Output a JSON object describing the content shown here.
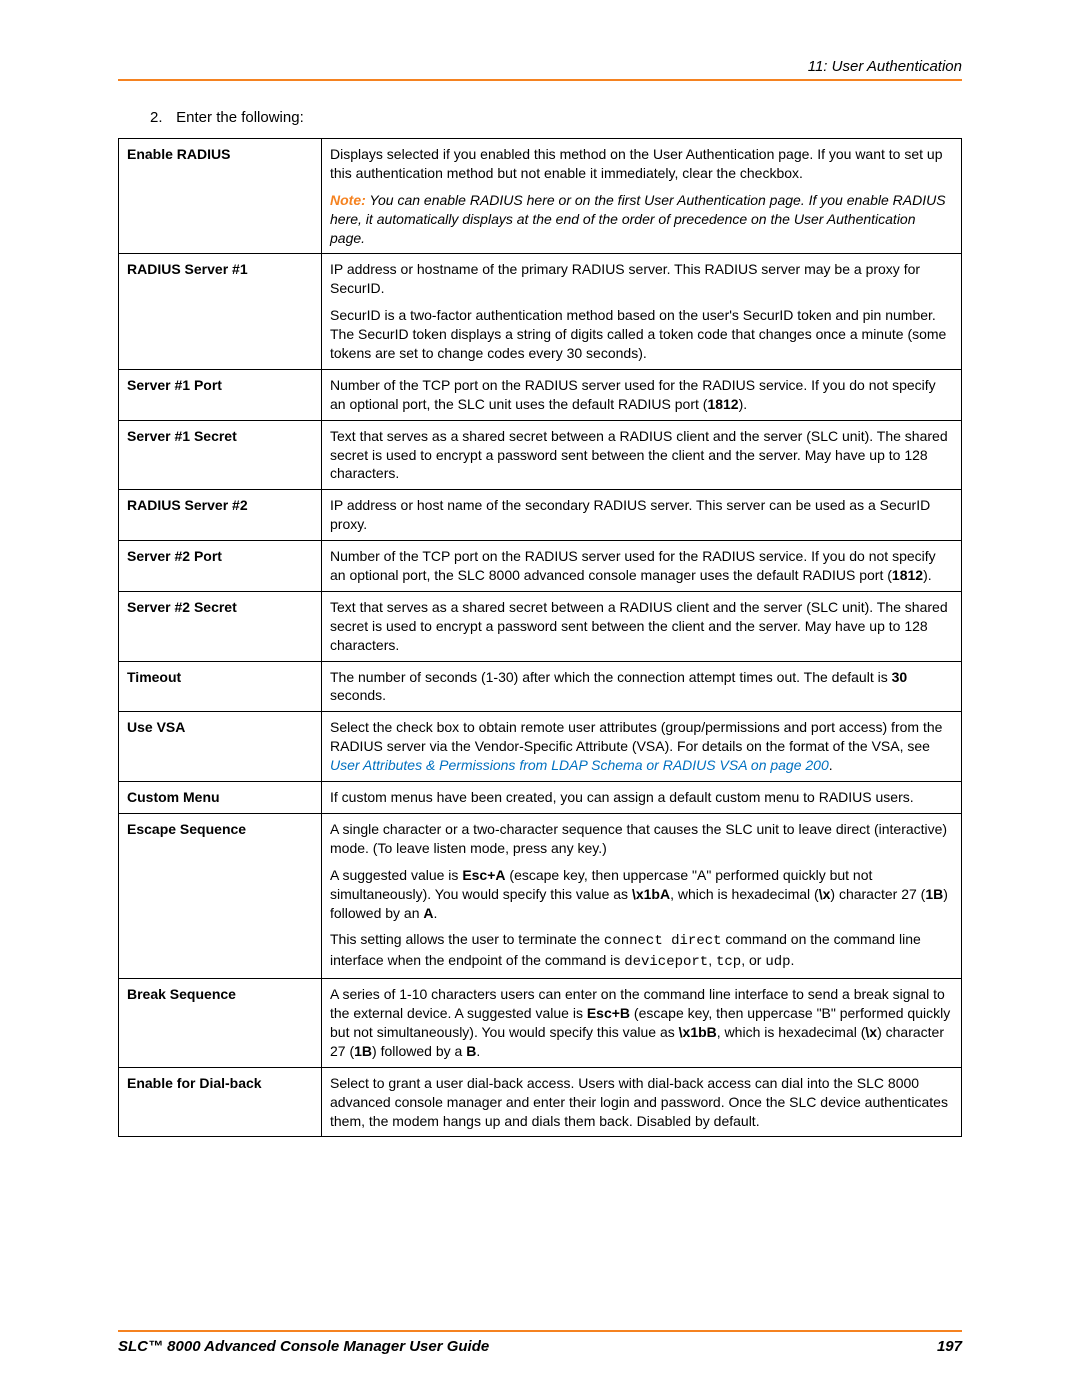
{
  "colors": {
    "accent": "#f58220",
    "link": "#0070c0",
    "text": "#000000",
    "background": "#ffffff",
    "border": "#000000"
  },
  "typography": {
    "body_font": "Arial",
    "body_size_pt": 11,
    "mono_font": "Courier New"
  },
  "header": {
    "chapter": "11: User Authentication"
  },
  "step": {
    "number": "2.",
    "text": "Enter the following:"
  },
  "table": {
    "rows": [
      {
        "label": "Enable RADIUS",
        "paras": [
          {
            "type": "plain",
            "text": "Displays selected if you enabled this method on the User Authentication page. If you want to set up this authentication method but not enable it immediately, clear the checkbox."
          },
          {
            "type": "note",
            "note_label": "Note:",
            "text": "You can enable RADIUS here or on the first User Authentication page. If you enable RADIUS here, it automatically displays at the end of the order of precedence on the User Authentication page."
          }
        ]
      },
      {
        "label": "RADIUS Server #1",
        "paras": [
          {
            "type": "plain",
            "text": "IP address or hostname of the primary RADIUS server. This RADIUS server may be a proxy for SecurID."
          },
          {
            "type": "plain",
            "text": "SecurID is a two-factor authentication method based on the user's SecurID token and pin number. The SecurID token displays a string of digits called a token code that changes once a minute (some tokens are set to change codes every 30 seconds)."
          }
        ]
      },
      {
        "label": "Server #1 Port",
        "paras": [
          {
            "type": "rich",
            "segments": [
              {
                "t": "Number of the TCP port on the RADIUS server used for the RADIUS service. If you do not specify an optional port, the SLC unit uses the default RADIUS port ("
              },
              {
                "t": "1812",
                "bold": true
              },
              {
                "t": ")."
              }
            ]
          }
        ]
      },
      {
        "label": "Server #1 Secret",
        "paras": [
          {
            "type": "plain",
            "text": "Text that serves as a shared secret between a RADIUS client and the server (SLC unit). The shared secret is used to encrypt a password sent between the client and the server. May have up to 128 characters."
          }
        ]
      },
      {
        "label": "RADIUS Server #2",
        "paras": [
          {
            "type": "plain",
            "text": "IP address or host name of the secondary RADIUS server. This server can be used as a SecurID proxy."
          }
        ]
      },
      {
        "label": "Server #2 Port",
        "paras": [
          {
            "type": "rich",
            "segments": [
              {
                "t": "Number of the TCP port on the RADIUS server used for the RADIUS service. If you do not specify an optional port, the SLC 8000 advanced console manager uses the default RADIUS port ("
              },
              {
                "t": "1812",
                "bold": true
              },
              {
                "t": ")."
              }
            ]
          }
        ]
      },
      {
        "label": "Server #2 Secret",
        "paras": [
          {
            "type": "plain",
            "text": "Text that serves as a shared secret between a RADIUS client and the server (SLC unit). The shared secret is used to encrypt a password sent between the client and the server. May have up to 128 characters."
          }
        ]
      },
      {
        "label": "Timeout",
        "paras": [
          {
            "type": "rich",
            "segments": [
              {
                "t": "The number of seconds (1-30) after which the connection attempt times out. The default is "
              },
              {
                "t": "30",
                "bold": true
              },
              {
                "t": " seconds."
              }
            ]
          }
        ]
      },
      {
        "label": "Use VSA",
        "paras": [
          {
            "type": "rich",
            "segments": [
              {
                "t": "Select the check box to obtain remote user attributes (group/permissions and port access) from the RADIUS server via the Vendor-Specific Attribute (VSA). For details on the format of the VSA, see "
              },
              {
                "t": "User Attributes & Permissions from LDAP Schema or RADIUS VSA on page 200",
                "link": true
              },
              {
                "t": "."
              }
            ]
          }
        ]
      },
      {
        "label": "Custom Menu",
        "paras": [
          {
            "type": "plain",
            "text": "If custom menus have been created, you can assign a default custom menu to RADIUS users."
          }
        ]
      },
      {
        "label": "Escape Sequence",
        "paras": [
          {
            "type": "plain",
            "text": "A single character or a two-character sequence that causes the SLC unit to leave direct (interactive) mode. (To leave listen mode, press any key.)"
          },
          {
            "type": "rich",
            "segments": [
              {
                "t": "A suggested value is "
              },
              {
                "t": "Esc+A",
                "bold": true
              },
              {
                "t": " (escape key, then uppercase \"A\" performed quickly but not simultaneously). You would specify this value as "
              },
              {
                "t": "\\x1bA",
                "bold": true
              },
              {
                "t": ", which is hexadecimal ("
              },
              {
                "t": "\\x",
                "bold": true
              },
              {
                "t": ") character 27 ("
              },
              {
                "t": "1B",
                "bold": true
              },
              {
                "t": ") followed by an "
              },
              {
                "t": "A",
                "bold": true
              },
              {
                "t": "."
              }
            ]
          },
          {
            "type": "rich",
            "segments": [
              {
                "t": "This setting allows the user to terminate the "
              },
              {
                "t": "connect direct",
                "mono": true
              },
              {
                "t": " command on the command line interface when the endpoint of the command is "
              },
              {
                "t": "deviceport",
                "mono": true
              },
              {
                "t": ", "
              },
              {
                "t": "tcp",
                "mono": true
              },
              {
                "t": ", or "
              },
              {
                "t": "udp",
                "mono": true
              },
              {
                "t": "."
              }
            ]
          }
        ]
      },
      {
        "label": "Break Sequence",
        "paras": [
          {
            "type": "rich",
            "segments": [
              {
                "t": "A series of 1-10 characters users can enter on the command line interface to send a break signal to the external device. A suggested value is "
              },
              {
                "t": "Esc+B",
                "bold": true
              },
              {
                "t": " (escape key, then uppercase \"B\" performed quickly but not simultaneously). You would specify this value as "
              },
              {
                "t": "\\x1bB",
                "bold": true
              },
              {
                "t": ", which is hexadecimal ("
              },
              {
                "t": "\\x",
                "bold": true
              },
              {
                "t": ") character 27 ("
              },
              {
                "t": "1B",
                "bold": true
              },
              {
                "t": ") followed by a "
              },
              {
                "t": "B",
                "bold": true
              },
              {
                "t": "."
              }
            ]
          }
        ]
      },
      {
        "label": "Enable for Dial-back",
        "paras": [
          {
            "type": "plain",
            "text": "Select to grant a user dial-back access. Users with dial-back access can dial into the SLC 8000 advanced console manager and enter their login and password. Once the SLC  device authenticates them, the modem hangs up and dials them back. Disabled by default."
          }
        ]
      }
    ]
  },
  "footer": {
    "title": "SLC™ 8000 Advanced Console Manager User Guide",
    "page": "197"
  }
}
